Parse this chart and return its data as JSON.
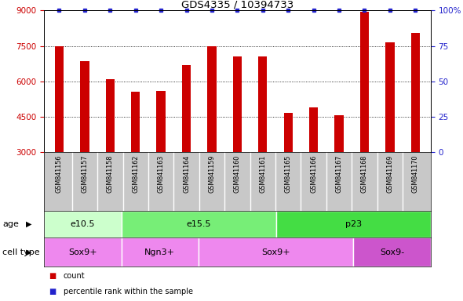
{
  "title": "GDS4335 / 10394733",
  "samples": [
    "GSM841156",
    "GSM841157",
    "GSM841158",
    "GSM841162",
    "GSM841163",
    "GSM841164",
    "GSM841159",
    "GSM841160",
    "GSM841161",
    "GSM841165",
    "GSM841166",
    "GSM841167",
    "GSM841168",
    "GSM841169",
    "GSM841170"
  ],
  "counts": [
    7480,
    6850,
    6100,
    5550,
    5600,
    6700,
    7500,
    7050,
    7050,
    4650,
    4900,
    4550,
    8950,
    7650,
    8050
  ],
  "percentile_values": [
    100,
    100,
    100,
    100,
    100,
    100,
    100,
    100,
    100,
    100,
    100,
    100,
    100,
    100,
    100
  ],
  "ylim_left": [
    3000,
    9000
  ],
  "ylim_right": [
    0,
    100
  ],
  "yticks_left": [
    3000,
    4500,
    6000,
    7500,
    9000
  ],
  "yticks_right": [
    0,
    25,
    50,
    75,
    100
  ],
  "bar_color": "#cc0000",
  "dot_color": "#2222cc",
  "tick_label_color_left": "#cc0000",
  "tick_label_color_right": "#2222cc",
  "age_groups": [
    {
      "label": "e10.5",
      "start": 0,
      "end": 3,
      "color": "#ccffcc"
    },
    {
      "label": "e15.5",
      "start": 3,
      "end": 9,
      "color": "#77ee77"
    },
    {
      "label": "p23",
      "start": 9,
      "end": 15,
      "color": "#44dd44"
    }
  ],
  "cell_type_groups": [
    {
      "label": "Sox9+",
      "start": 0,
      "end": 3,
      "color": "#ee88ee"
    },
    {
      "label": "Ngn3+",
      "start": 3,
      "end": 6,
      "color": "#ee88ee"
    },
    {
      "label": "Sox9+",
      "start": 6,
      "end": 12,
      "color": "#ee88ee"
    },
    {
      "label": "Sox9-",
      "start": 12,
      "end": 15,
      "color": "#cc55cc"
    }
  ],
  "age_label": "age",
  "cell_type_label": "cell type",
  "legend_count_color": "#cc0000",
  "legend_dot_color": "#2222cc"
}
